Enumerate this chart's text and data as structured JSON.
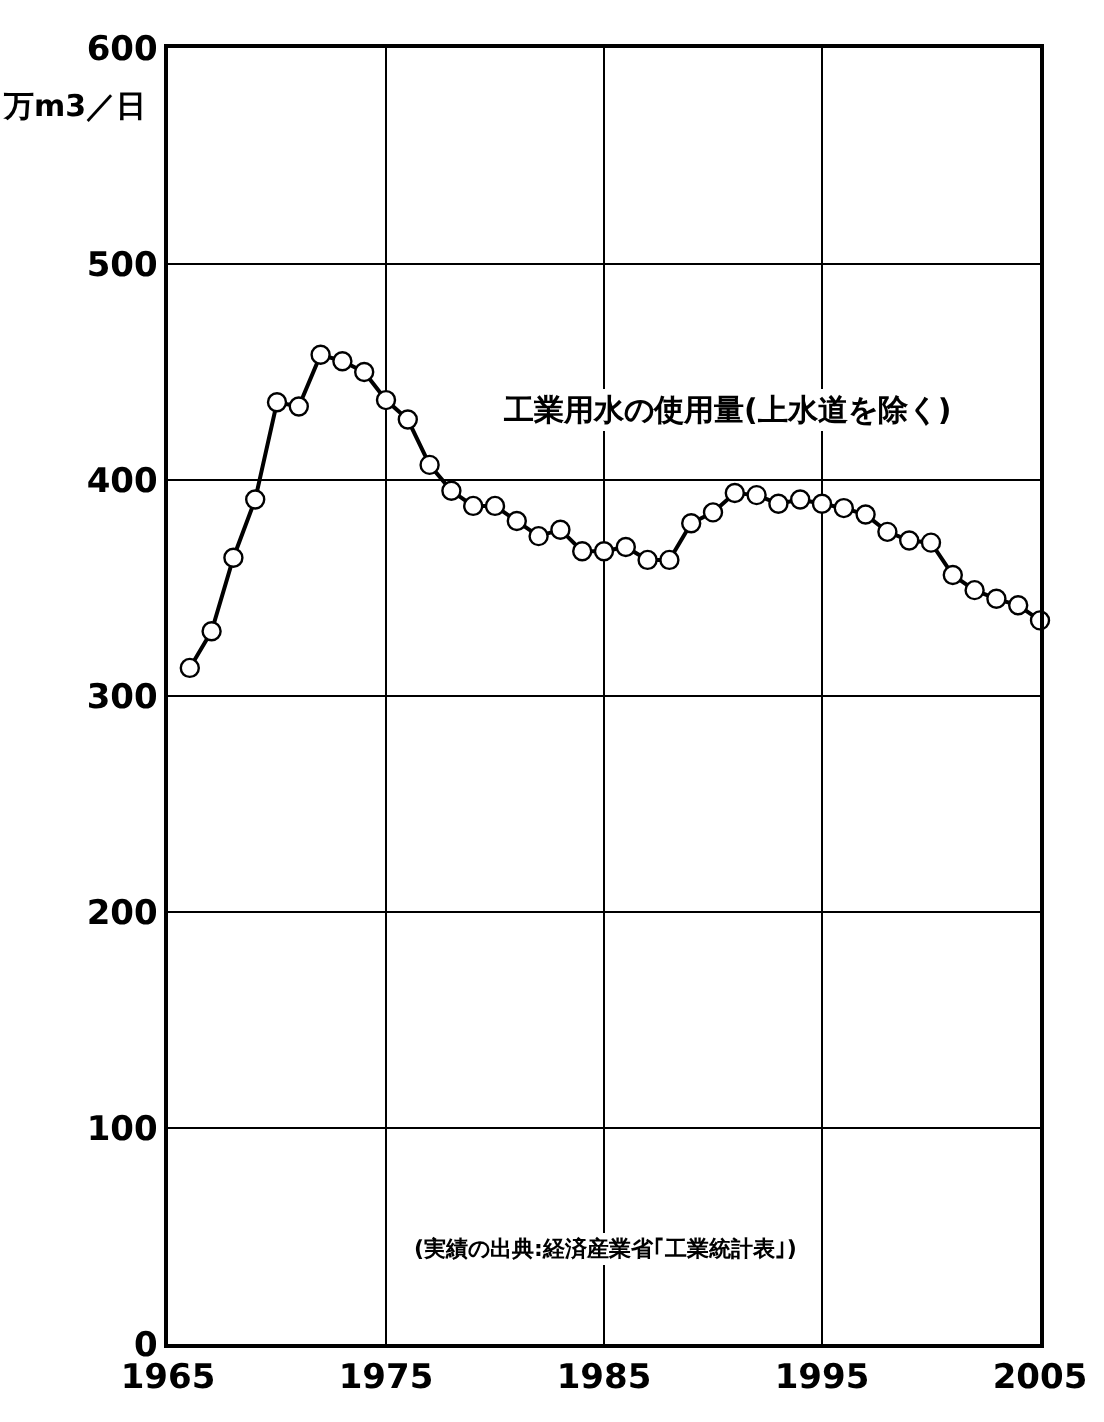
{
  "chart_data": {
    "type": "line",
    "title": "工業用水の使用量(上水道を除く)",
    "ylabel": "万m3／日",
    "annotations": [
      "(実績の出典:経済産業省｢工業統計表｣)"
    ],
    "x": [
      1966,
      1967,
      1968,
      1969,
      1970,
      1971,
      1972,
      1973,
      1974,
      1975,
      1976,
      1977,
      1978,
      1979,
      1980,
      1981,
      1982,
      1983,
      1984,
      1985,
      1986,
      1987,
      1988,
      1989,
      1990,
      1991,
      1992,
      1993,
      1994,
      1995,
      1996,
      1997,
      1998,
      1999,
      2000,
      2001,
      2002,
      2003,
      2004,
      2005
    ],
    "series": [
      {
        "color": "#000000",
        "values": [
          313,
          330,
          364,
          391,
          436,
          434,
          458,
          455,
          450,
          437,
          428,
          407,
          395,
          388,
          388,
          381,
          374,
          377,
          367,
          367,
          369,
          363,
          363,
          380,
          385,
          394,
          393,
          389,
          391,
          389,
          387,
          384,
          376,
          372,
          371,
          356,
          349,
          345,
          342,
          335
        ]
      }
    ],
    "xlim": [
      1965,
      2005
    ],
    "xticks": [
      1965,
      1975,
      1985,
      1995,
      2005
    ],
    "ylim": [
      0,
      600
    ],
    "yticks": [
      0,
      100,
      200,
      300,
      400,
      500,
      600
    ],
    "grid": true,
    "marker": "circle",
    "line_style": "solid"
  }
}
